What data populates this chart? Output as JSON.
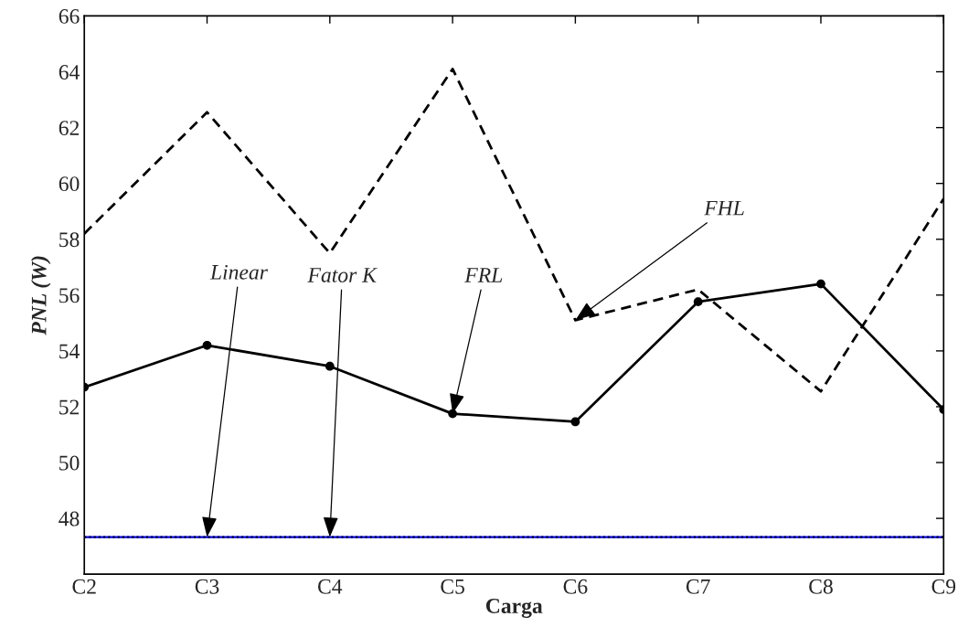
{
  "chart_data": {
    "type": "line",
    "xlabel": "Carga",
    "ylabel": "PNL (W)",
    "categories": [
      "C2",
      "C3",
      "C4",
      "C5",
      "C6",
      "C7",
      "C8",
      "C9"
    ],
    "series": [
      {
        "color": "#000000",
        "line_style": "dashed",
        "marker": "none",
        "values": [
          58.2,
          62.55,
          57.5,
          64.1,
          55.1,
          56.2,
          52.55,
          59.45
        ]
      },
      {
        "color": "#000000",
        "line_style": "solid",
        "marker": "circle",
        "values": [
          52.7,
          54.2,
          53.45,
          51.75,
          51.46,
          55.76,
          56.4,
          51.9
        ]
      },
      {
        "color": "#0000ff",
        "line_style": "solid",
        "marker": "none",
        "values": [
          47.33,
          47.33,
          47.33,
          47.33,
          47.33,
          47.33,
          47.33,
          47.33
        ]
      },
      {
        "color": "#000000",
        "line_style": "dotted",
        "marker": "none",
        "values": [
          47.33,
          47.33,
          47.33,
          47.33,
          47.33,
          47.33,
          47.33,
          47.33
        ]
      }
    ],
    "ylim": [
      46,
      66
    ],
    "yticks": [
      48,
      50,
      52,
      54,
      56,
      58,
      60,
      62,
      64,
      66
    ],
    "grid": false,
    "legend": false,
    "annotations": [
      {
        "text": "Linear",
        "x": "C3",
        "y": 47.33
      },
      {
        "text": "Fator K",
        "x": "C4",
        "y": 47.33
      },
      {
        "text": "FRL",
        "x": "C5",
        "y": 51.75
      },
      {
        "text": "FHL",
        "x": "C6",
        "y": 55.1
      }
    ]
  }
}
